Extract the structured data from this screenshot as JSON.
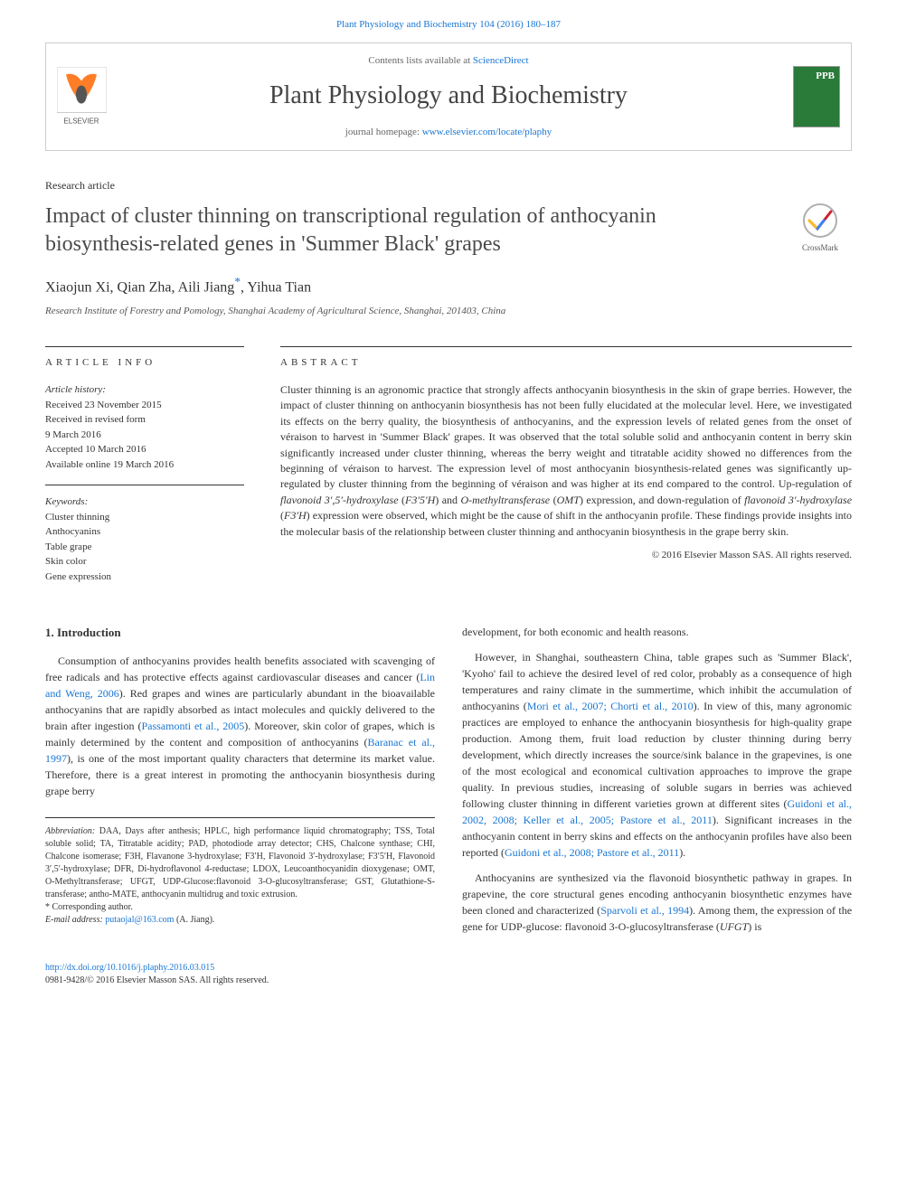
{
  "citation": "Plant Physiology and Biochemistry 104 (2016) 180–187",
  "contents_prefix": "Contents lists available at ",
  "contents_link": "ScienceDirect",
  "journal_name": "Plant Physiology and Biochemistry",
  "homepage_prefix": "journal homepage: ",
  "homepage_url": "www.elsevier.com/locate/plaphy",
  "publisher_logo_label": "ELSEVIER",
  "cover_label": "PPB",
  "article_type": "Research article",
  "title": "Impact of cluster thinning on transcriptional regulation of anthocyanin biosynthesis-related genes in 'Summer Black' grapes",
  "crossmark_label": "CrossMark",
  "authors_html": "Xiaojun Xi, Qian Zha, Aili Jiang<sup class=\"corr\">*</sup>, Yihua Tian",
  "affiliation": "Research Institute of Forestry and Pomology, Shanghai Academy of Agricultural Science, Shanghai, 201403, China",
  "info_label": "ARTICLE INFO",
  "abstract_label": "ABSTRACT",
  "history_label": "Article history:",
  "history_lines": [
    "Received 23 November 2015",
    "Received in revised form",
    "9 March 2016",
    "Accepted 10 March 2016",
    "Available online 19 March 2016"
  ],
  "keywords_label": "Keywords:",
  "keywords": [
    "Cluster thinning",
    "Anthocyanins",
    "Table grape",
    "Skin color",
    "Gene expression"
  ],
  "abstract": "Cluster thinning is an agronomic practice that strongly affects anthocyanin biosynthesis in the skin of grape berries. However, the impact of cluster thinning on anthocyanin biosynthesis has not been fully elucidated at the molecular level. Here, we investigated its effects on the berry quality, the biosynthesis of anthocyanins, and the expression levels of related genes from the onset of véraison to harvest in 'Summer Black' grapes. It was observed that the total soluble solid and anthocyanin content in berry skin significantly increased under cluster thinning, whereas the berry weight and titratable acidity showed no differences from the beginning of véraison to harvest. The expression level of most anthocyanin biosynthesis-related genes was significantly up-regulated by cluster thinning from the beginning of véraison and was higher at its end compared to the control. Up-regulation of <span class=\"gene\">flavonoid 3′,5′-hydroxylase</span> (<span class=\"gene\">F3′5′H</span>) and <span class=\"gene\">O-methyltransferase</span> (<span class=\"gene\">OMT</span>) expression, and down-regulation of <span class=\"gene\">flavonoid 3′-hydroxylase</span> (<span class=\"gene\">F3′H</span>) expression were observed, which might be the cause of shift in the anthocyanin profile. These findings provide insights into the molecular basis of the relationship between cluster thinning and anthocyanin biosynthesis in the grape berry skin.",
  "copyright": "© 2016 Elsevier Masson SAS. All rights reserved.",
  "intro_heading": "1. Introduction",
  "intro_p1": "Consumption of anthocyanins provides health benefits associated with scavenging of free radicals and has protective effects against cardiovascular diseases and cancer (<span class=\"cite\">Lin and Weng, 2006</span>). Red grapes and wines are particularly abundant in the bioavailable anthocyanins that are rapidly absorbed as intact molecules and quickly delivered to the brain after ingestion (<span class=\"cite\">Passamonti et al., 2005</span>). Moreover, skin color of grapes, which is mainly determined by the content and composition of anthocyanins (<span class=\"cite\">Baranac et al., 1997</span>), is one of the most important quality characters that determine its market value. Therefore, there is a great interest in promoting the anthocyanin biosynthesis during grape berry",
  "intro_p2": "development, for both economic and health reasons.",
  "intro_p3": "However, in Shanghai, southeastern China, table grapes such as 'Summer Black', 'Kyoho' fail to achieve the desired level of red color, probably as a consequence of high temperatures and rainy climate in the summertime, which inhibit the accumulation of anthocyanins (<span class=\"cite\">Mori et al., 2007; Chorti et al., 2010</span>). In view of this, many agronomic practices are employed to enhance the anthocyanin biosynthesis for high-quality grape production. Among them, fruit load reduction by cluster thinning during berry development, which directly increases the source/sink balance in the grapevines, is one of the most ecological and economical cultivation approaches to improve the grape quality. In previous studies, increasing of soluble sugars in berries was achieved following cluster thinning in different varieties grown at different sites (<span class=\"cite\">Guidoni et al., 2002, 2008; Keller et al., 2005; Pastore et al., 2011</span>). Significant increases in the anthocyanin content in berry skins and effects on the anthocyanin profiles have also been reported (<span class=\"cite\">Guidoni et al., 2008; Pastore et al., 2011</span>).",
  "intro_p4": "Anthocyanins are synthesized via the flavonoid biosynthetic pathway in grapes. In grapevine, the core structural genes encoding anthocyanin biosynthetic enzymes have been cloned and characterized (<span class=\"cite\">Sparvoli et al., 1994</span>). Among them, the expression of the gene for UDP-glucose: flavonoid 3-O-glucosyltransferase (<span class=\"gene-it\">UFGT</span>) is",
  "abbrev_label": "Abbreviation:",
  "abbrev_text": " DAA, Days after anthesis; HPLC, high performance liquid chromatography; TSS, Total soluble solid; TA, Titratable acidity; PAD, photodiode array detector; CHS, Chalcone synthase; CHI, Chalcone isomerase; F3H, Flavanone 3-hydroxylase; F3′H, Flavonoid 3′-hydroxylase; F3′5′H, Flavonoid 3′,5′-hydroxylase; DFR, Di-hydroflavonol 4-reductase; LDOX, Leucoanthocyanidin dioxygenase; OMT, O-Methyltransferase; UFGT, UDP-Glucose:flavonoid 3-O-glucosyltransferase; GST, Glutathione-S-transferase; antho-MATE, anthocyanin multidrug and toxic extrusion.",
  "corr_label": "* Corresponding author.",
  "email_label": "E-mail address:",
  "email": "putaojal@163.com",
  "email_suffix": " (A. Jiang).",
  "doi_url": "http://dx.doi.org/10.1016/j.plaphy.2016.03.015",
  "issn_line": "0981-9428/© 2016 Elsevier Masson SAS. All rights reserved.",
  "colors": {
    "link": "#1976d2",
    "text": "#333333",
    "border": "#cccccc",
    "cover_bg": "#2a7a3a",
    "elsevier_orange": "#ff6600"
  }
}
